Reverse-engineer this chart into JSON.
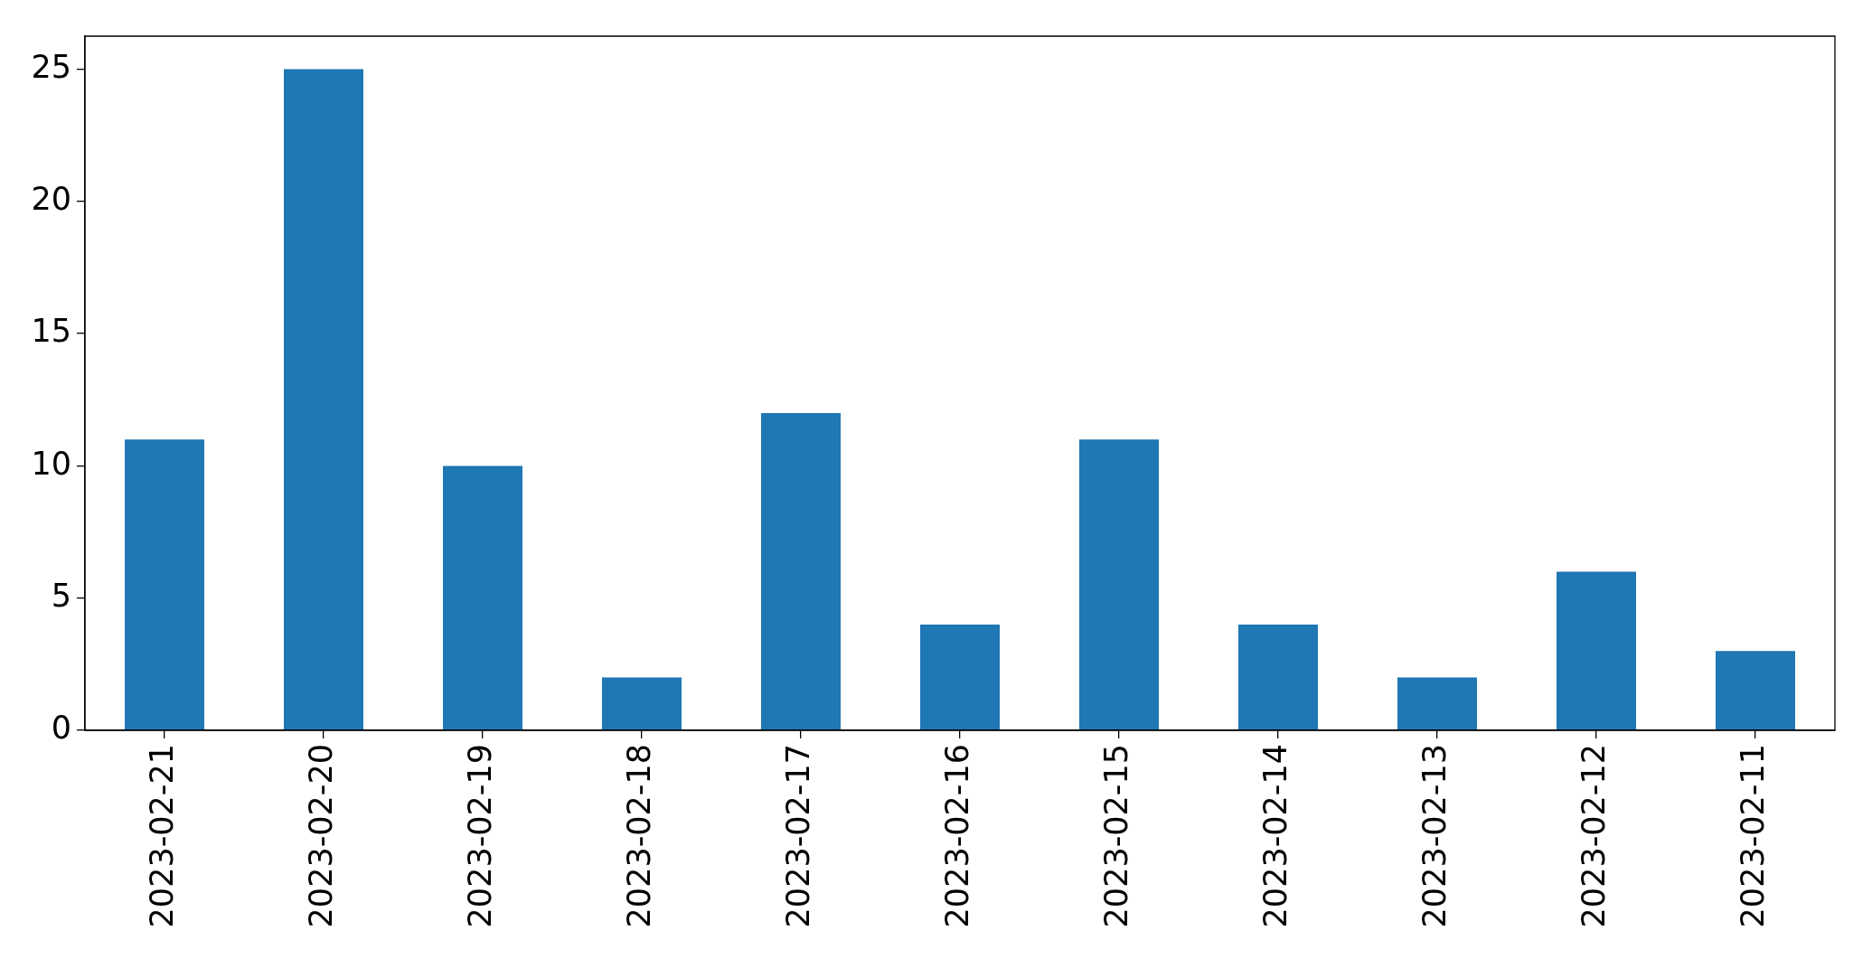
{
  "chart_data": {
    "type": "bar",
    "categories": [
      "2023-02-21",
      "2023-02-20",
      "2023-02-19",
      "2023-02-18",
      "2023-02-17",
      "2023-02-16",
      "2023-02-15",
      "2023-02-14",
      "2023-02-13",
      "2023-02-12",
      "2023-02-11"
    ],
    "values": [
      11,
      25,
      10,
      2,
      12,
      4,
      11,
      4,
      2,
      6,
      3
    ],
    "color": "#1f77b4",
    "ylim": [
      0,
      26.25
    ],
    "yticks": [
      0,
      5,
      10,
      15,
      20,
      25
    ],
    "grid": false
  }
}
